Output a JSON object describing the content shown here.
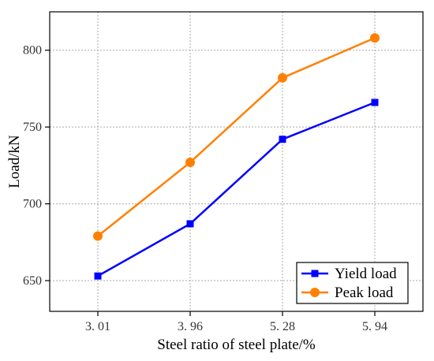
{
  "chart_data": {
    "type": "line",
    "categories": [
      "3. 01",
      "3. 96",
      "5. 28",
      "5. 94"
    ],
    "series": [
      {
        "name": "Yield load",
        "values": [
          653,
          687,
          742,
          766
        ],
        "color": "#0000ff",
        "marker": "square"
      },
      {
        "name": "Peak load",
        "values": [
          679,
          727,
          782,
          808
        ],
        "color": "#ff8000",
        "marker": "circle"
      }
    ],
    "xlabel": "Steel ratio of steel plate/%",
    "ylabel": "Load/kN",
    "ylim": [
      630,
      825
    ],
    "yticks": [
      650,
      700,
      750,
      800
    ],
    "grid": true,
    "legend_position": "bottom-right"
  }
}
